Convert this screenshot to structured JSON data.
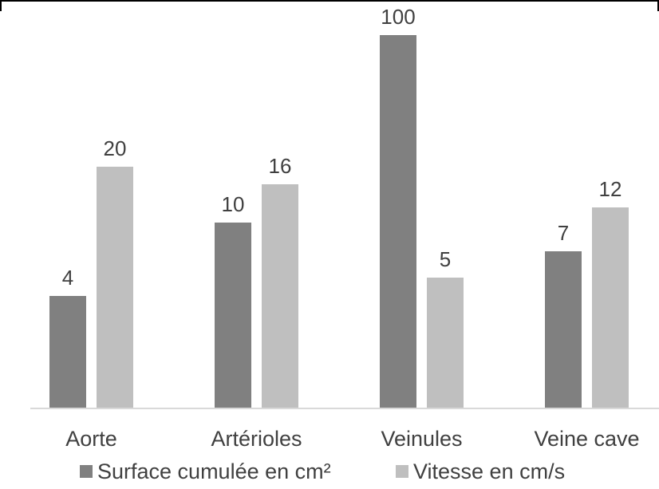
{
  "chart_data": {
    "type": "bar",
    "title": "",
    "xlabel": "",
    "ylabel": "",
    "categories": [
      "Aorte",
      "Artérioles",
      "Veinules",
      "Veine cave"
    ],
    "series": [
      {
        "name": "Surface cumulée en cm²",
        "values": [
          4,
          10,
          100,
          7
        ],
        "labels": [
          "4",
          "10",
          "100",
          "7"
        ],
        "color": "#808080"
      },
      {
        "name": "Vitesse en cm/s",
        "values": [
          20,
          16,
          5,
          12
        ],
        "labels": [
          "20",
          "16",
          "5",
          "12"
        ],
        "color": "#bfbfbf"
      }
    ],
    "scale_note": "non-linear",
    "legend_position": "bottom",
    "grid": false
  }
}
